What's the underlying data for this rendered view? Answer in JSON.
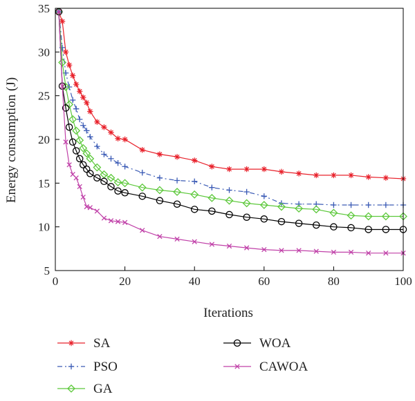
{
  "chart_data": {
    "type": "line",
    "title": "",
    "xlabel": "Iterations",
    "ylabel": "Energy consumption (J)",
    "xlim": [
      0,
      100
    ],
    "ylim": [
      5,
      35
    ],
    "xticks": [
      0,
      20,
      40,
      60,
      80,
      100
    ],
    "yticks": [
      5,
      10,
      15,
      20,
      25,
      30,
      35
    ],
    "grid": false,
    "legend_position": "bottom",
    "x": [
      1,
      2,
      3,
      4,
      5,
      6,
      7,
      8,
      9,
      10,
      12,
      14,
      16,
      18,
      20,
      25,
      30,
      35,
      40,
      45,
      50,
      55,
      60,
      65,
      70,
      75,
      80,
      85,
      90,
      95,
      100
    ],
    "series": [
      {
        "name": "SA",
        "color": "#e8202a",
        "dash": "",
        "marker": "asterisk",
        "values": [
          34.6,
          33.5,
          30.0,
          28.5,
          27.3,
          26.3,
          25.5,
          24.8,
          24.2,
          23.2,
          22.0,
          21.4,
          20.8,
          20.1,
          20.0,
          18.8,
          18.3,
          18.0,
          17.6,
          16.9,
          16.6,
          16.6,
          16.6,
          16.3,
          16.1,
          15.9,
          15.9,
          15.9,
          15.7,
          15.6,
          15.5
        ]
      },
      {
        "name": "PSO",
        "color": "#3a5ab5",
        "dash": "7 4 2 4",
        "marker": "plus",
        "values": [
          34.6,
          30.5,
          27.6,
          26.0,
          24.5,
          23.5,
          22.3,
          21.6,
          21.0,
          20.3,
          19.2,
          18.3,
          17.8,
          17.3,
          16.9,
          16.2,
          15.6,
          15.3,
          15.2,
          14.5,
          14.2,
          14.0,
          13.5,
          12.7,
          12.6,
          12.6,
          12.5,
          12.5,
          12.5,
          12.5,
          12.5
        ]
      },
      {
        "name": "GA",
        "color": "#5cc83a",
        "dash": "",
        "marker": "diamond",
        "values": [
          34.6,
          28.8,
          26.0,
          24.0,
          22.3,
          21.0,
          19.9,
          19.0,
          18.4,
          17.8,
          16.8,
          16.0,
          15.6,
          15.1,
          15.0,
          14.5,
          14.2,
          14.0,
          13.7,
          13.3,
          13.0,
          12.7,
          12.5,
          12.3,
          12.1,
          12.0,
          11.6,
          11.3,
          11.2,
          11.2,
          11.2
        ]
      },
      {
        "name": "WOA",
        "color": "#000000",
        "dash": "",
        "marker": "circle",
        "values": [
          34.6,
          26.1,
          23.6,
          21.4,
          19.7,
          18.7,
          17.8,
          17.1,
          16.6,
          16.1,
          15.6,
          15.2,
          14.6,
          14.1,
          13.9,
          13.5,
          13.0,
          12.6,
          12.0,
          11.8,
          11.4,
          11.1,
          10.9,
          10.6,
          10.4,
          10.2,
          10.0,
          9.9,
          9.7,
          9.7,
          9.7
        ]
      },
      {
        "name": "CAWOA",
        "color": "#c040a8",
        "dash": "",
        "marker": "cross",
        "values": [
          34.6,
          26.1,
          19.7,
          17.1,
          16.0,
          15.6,
          14.6,
          13.4,
          12.3,
          12.2,
          11.8,
          11.0,
          10.7,
          10.6,
          10.5,
          9.6,
          8.9,
          8.6,
          8.3,
          8.0,
          7.8,
          7.6,
          7.4,
          7.3,
          7.3,
          7.2,
          7.1,
          7.1,
          7.0,
          7.0,
          7.0
        ]
      }
    ]
  }
}
